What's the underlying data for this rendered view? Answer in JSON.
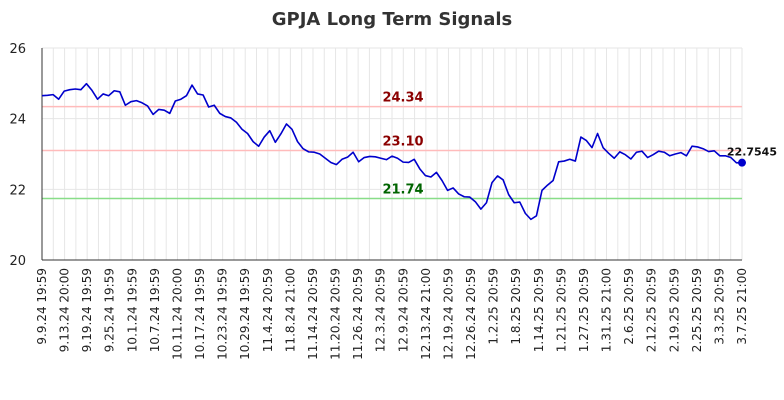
{
  "chart_data": {
    "type": "line",
    "title": "GPJA Long Term Signals",
    "xlabel": "",
    "ylabel": "",
    "ylim": [
      20,
      26
    ],
    "yticks": [
      "20",
      "22",
      "24",
      "26"
    ],
    "grid": true,
    "xtick_labels": [
      "9.9.24 19:59",
      "9.13.24 20:00",
      "9.19.24 19:59",
      "9.25.24 19:59",
      "10.1.24 19:59",
      "10.7.24 19:59",
      "10.11.24 20:00",
      "10.17.24 19:59",
      "10.23.24 19:59",
      "10.29.24 19:59",
      "11.4.24 20:59",
      "11.8.24 21:00",
      "11.14.24 20:59",
      "11.20.24 20:59",
      "11.26.24 20:59",
      "12.3.24 20:59",
      "12.9.24 20:59",
      "12.13.24 21:00",
      "12.19.24 20:59",
      "12.26.24 20:59",
      "1.2.25 20:59",
      "1.8.25 20:59",
      "1.14.25 20:59",
      "1.21.25 20:59",
      "1.27.25 20:59",
      "1.31.25 21:00",
      "2.6.25 20:59",
      "2.12.25 20:59",
      "2.19.25 20:59",
      "2.25.25 20:59",
      "3.3.25 20:59",
      "3.7.25 21:00"
    ],
    "series": [
      {
        "color": "#0000cc",
        "values": [
          24.65,
          24.66,
          24.68,
          24.55,
          24.78,
          24.82,
          24.84,
          24.82,
          24.99,
          24.8,
          24.55,
          24.7,
          24.65,
          24.79,
          24.76,
          24.38,
          24.48,
          24.51,
          24.45,
          24.36,
          24.12,
          24.26,
          24.24,
          24.15,
          24.5,
          24.55,
          24.65,
          24.95,
          24.7,
          24.67,
          24.33,
          24.38,
          24.15,
          24.06,
          24.02,
          23.9,
          23.7,
          23.58,
          23.35,
          23.22,
          23.48,
          23.66,
          23.33,
          23.57,
          23.85,
          23.7,
          23.35,
          23.15,
          23.06,
          23.05,
          23.0,
          22.88,
          22.76,
          22.7,
          22.85,
          22.91,
          23.05,
          22.78,
          22.9,
          22.93,
          22.92,
          22.88,
          22.84,
          22.94,
          22.88,
          22.77,
          22.76,
          22.85,
          22.58,
          22.39,
          22.35,
          22.48,
          22.25,
          21.97,
          22.04,
          21.87,
          21.79,
          21.78,
          21.65,
          21.44,
          21.62,
          22.19,
          22.38,
          22.27,
          21.85,
          21.62,
          21.64,
          21.32,
          21.15,
          21.25,
          21.97,
          22.12,
          22.25,
          22.78,
          22.8,
          22.85,
          22.8,
          23.48,
          23.38,
          23.18,
          23.58,
          23.18,
          23.02,
          22.88,
          23.06,
          22.98,
          22.86,
          23.05,
          23.08,
          22.9,
          22.98,
          23.08,
          23.05,
          22.95,
          23.0,
          23.04,
          22.95,
          23.22,
          23.2,
          23.15,
          23.07,
          23.09,
          22.95,
          22.95,
          22.9,
          22.75,
          22.7545
        ]
      }
    ],
    "levels": [
      {
        "value": 24.34,
        "label": "24.34",
        "line_color": "#ffbbbb",
        "text_color": "#8b0000"
      },
      {
        "value": 23.1,
        "label": "23.10",
        "line_color": "#ffbbbb",
        "text_color": "#8b0000"
      },
      {
        "value": 21.74,
        "label": "21.74",
        "line_color": "#88dd88",
        "text_color": "#006400"
      }
    ],
    "last_value_label": "22.7545"
  }
}
